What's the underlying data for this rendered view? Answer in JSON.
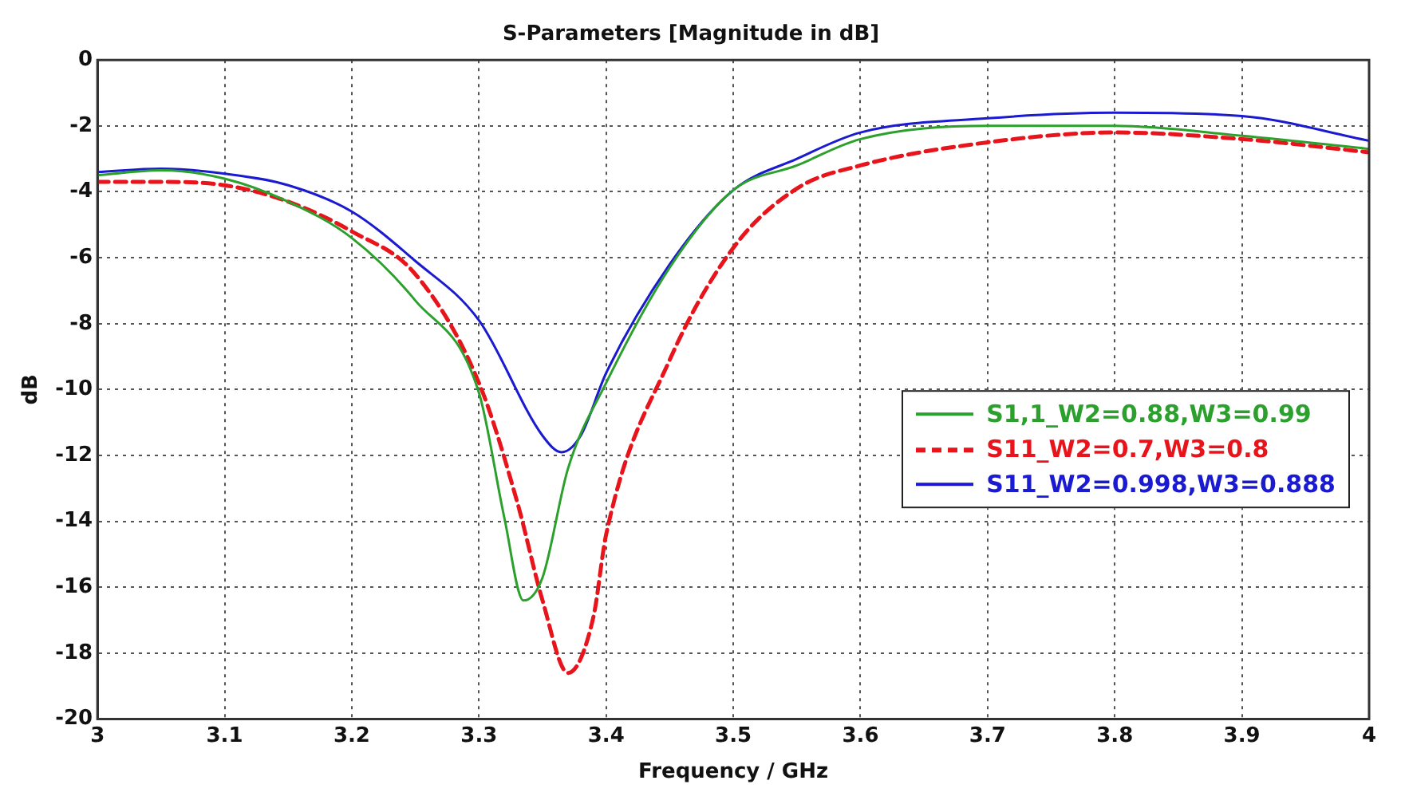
{
  "chart_data": {
    "type": "line",
    "title": "S-Parameters [Magnitude in dB]",
    "xlabel": "Frequency / GHz",
    "ylabel": "dB",
    "xlim": [
      3,
      4
    ],
    "xticks": [
      3,
      3.1,
      3.2,
      3.3,
      3.4,
      3.5,
      3.6,
      3.7,
      3.8,
      3.9,
      4
    ],
    "ylim": [
      -20,
      0
    ],
    "yticks": [
      -20,
      -18,
      -16,
      -14,
      -12,
      -10,
      -8,
      -6,
      -4,
      -2,
      0
    ],
    "grid": true,
    "legend": "right",
    "marker": "none",
    "series": [
      {
        "name": "S1,1_W2=0.88,W3=0.99",
        "color": "#2ca02c",
        "line_style": "solid",
        "x": [
          3,
          3.05,
          3.1,
          3.15,
          3.2,
          3.25,
          3.3,
          3.32,
          3.335,
          3.35,
          3.37,
          3.4,
          3.45,
          3.5,
          3.55,
          3.6,
          3.7,
          3.8,
          3.9,
          4
        ],
        "values": [
          -3.5,
          -3.35,
          -3.6,
          -4.3,
          -5.4,
          -7.3,
          -10.1,
          -13.9,
          -16.4,
          -15.7,
          -12.4,
          -9.8,
          -6.3,
          -3.95,
          -3.2,
          -2.4,
          -2.0,
          -2.0,
          -2.3,
          -2.7
        ]
      },
      {
        "name": "S11_W2=0.7,W3=0.8",
        "color": "#e8141c",
        "line_style": "dashed",
        "x": [
          3,
          3.05,
          3.1,
          3.15,
          3.2,
          3.25,
          3.3,
          3.33,
          3.35,
          3.37,
          3.39,
          3.4,
          3.45,
          3.5,
          3.55,
          3.6,
          3.7,
          3.8,
          3.9,
          4
        ],
        "values": [
          -3.7,
          -3.7,
          -3.8,
          -4.3,
          -5.2,
          -6.5,
          -9.8,
          -13.4,
          -16.4,
          -18.6,
          -16.9,
          -14.4,
          -9.1,
          -5.7,
          -3.9,
          -3.2,
          -2.5,
          -2.2,
          -2.4,
          -2.8
        ]
      },
      {
        "name": "S11_W2=0.998,W3=0.888",
        "color": "#1a1ad0",
        "line_style": "solid",
        "x": [
          3,
          3.05,
          3.1,
          3.15,
          3.2,
          3.25,
          3.3,
          3.35,
          3.365,
          3.38,
          3.4,
          3.45,
          3.5,
          3.55,
          3.6,
          3.7,
          3.8,
          3.9,
          4
        ],
        "values": [
          -3.4,
          -3.3,
          -3.45,
          -3.8,
          -4.6,
          -6.1,
          -7.9,
          -11.4,
          -11.9,
          -11.4,
          -9.5,
          -6.2,
          -3.95,
          -3.0,
          -2.2,
          -1.77,
          -1.6,
          -1.7,
          -2.45
        ]
      }
    ]
  }
}
